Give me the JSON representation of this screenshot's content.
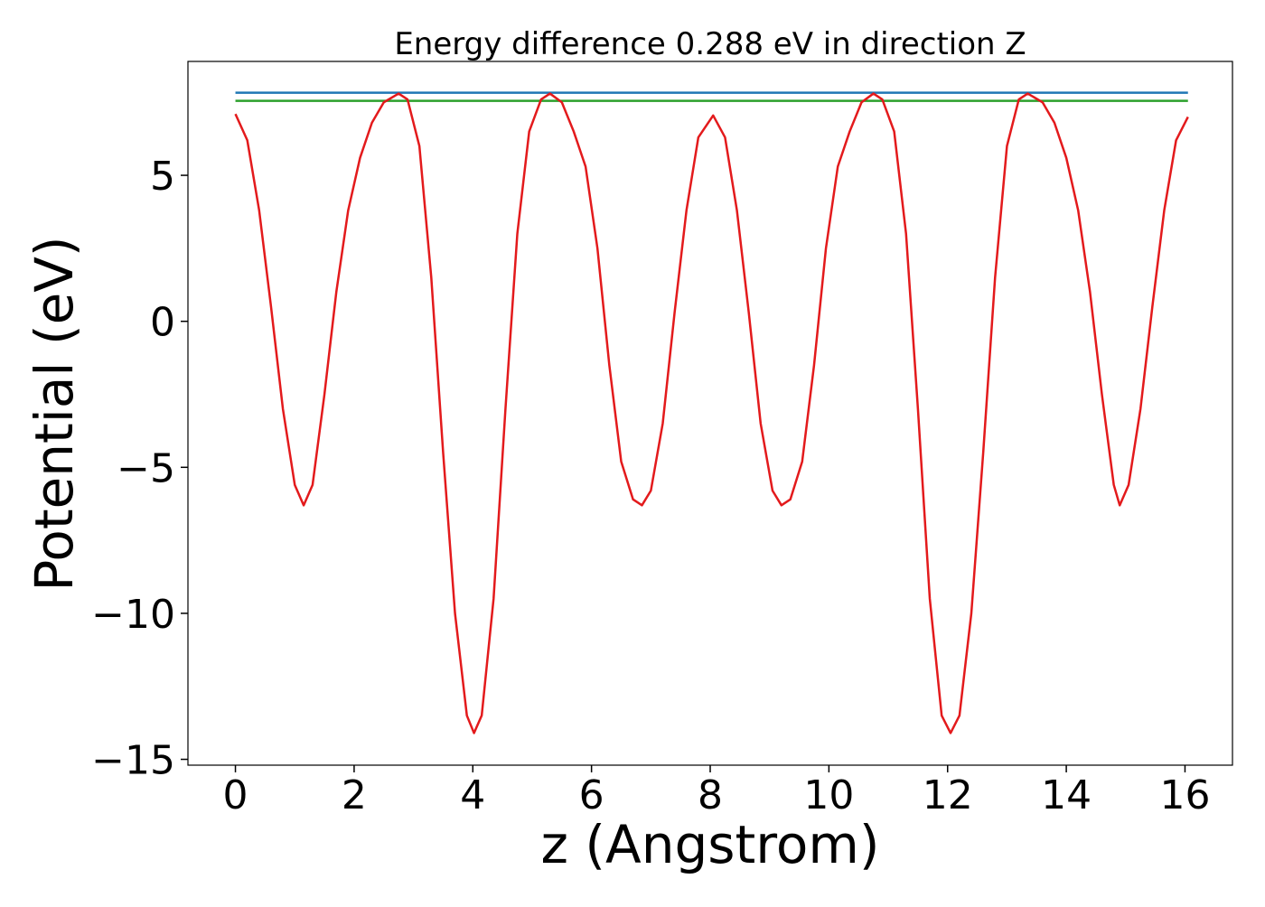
{
  "chart_data": {
    "type": "line",
    "title": "Energy difference 0.288 eV in direction Z",
    "xlabel": "z (Angstrom)",
    "ylabel": "Potential (eV)",
    "xlim": [
      -0.8,
      16.8
    ],
    "ylim": [
      -15.2,
      8.9
    ],
    "xticks": [
      0,
      2,
      4,
      6,
      8,
      10,
      12,
      14,
      16
    ],
    "yticks": [
      {
        "value": -15,
        "label": "−15"
      },
      {
        "value": -10,
        "label": "−10"
      },
      {
        "value": -5,
        "label": "−5"
      },
      0,
      5
    ],
    "series": [
      {
        "color": "#e31a1c",
        "x": [
          0,
          0.2,
          0.4,
          0.6,
          0.8,
          1.0,
          1.15,
          1.3,
          1.5,
          1.7,
          1.9,
          2.1,
          2.3,
          2.5,
          2.75,
          2.9,
          3.1,
          3.3,
          3.5,
          3.7,
          3.9,
          4.02,
          4.15,
          4.35,
          4.55,
          4.75,
          4.95,
          5.15,
          5.3,
          5.5,
          5.7,
          5.9,
          6.1,
          6.3,
          6.5,
          6.7,
          6.85,
          7.0,
          7.2,
          7.4,
          7.6,
          7.8,
          8.05,
          8.25,
          8.45,
          8.65,
          8.85,
          9.05,
          9.2,
          9.35,
          9.55,
          9.75,
          9.95,
          10.15,
          10.35,
          10.55,
          10.75,
          10.9,
          11.1,
          11.3,
          11.5,
          11.7,
          11.9,
          12.05,
          12.2,
          12.4,
          12.6,
          12.8,
          13.0,
          13.2,
          13.35,
          13.6,
          13.8,
          14.0,
          14.2,
          14.4,
          14.6,
          14.8,
          14.9,
          15.05,
          15.25,
          15.45,
          15.65,
          15.85,
          16.05
        ],
        "values": [
          7.1,
          6.2,
          3.8,
          0.5,
          -3.0,
          -5.6,
          -6.3,
          -5.6,
          -2.5,
          1.0,
          3.8,
          5.6,
          6.8,
          7.5,
          7.8,
          7.6,
          6.0,
          1.5,
          -4.5,
          -10.0,
          -13.5,
          -14.1,
          -13.5,
          -9.5,
          -3.0,
          3.0,
          6.5,
          7.6,
          7.8,
          7.5,
          6.5,
          5.3,
          2.5,
          -1.5,
          -4.8,
          -6.1,
          -6.3,
          -5.8,
          -3.5,
          0.3,
          3.8,
          6.3,
          7.05,
          6.3,
          3.8,
          0.3,
          -3.5,
          -5.8,
          -6.3,
          -6.1,
          -4.8,
          -1.5,
          2.5,
          5.3,
          6.5,
          7.5,
          7.8,
          7.6,
          6.5,
          3.0,
          -3.0,
          -9.5,
          -13.5,
          -14.1,
          -13.5,
          -10.0,
          -4.5,
          1.5,
          6.0,
          7.6,
          7.8,
          7.5,
          6.8,
          5.6,
          3.8,
          1.0,
          -2.5,
          -5.6,
          -6.3,
          -5.6,
          -3.0,
          0.5,
          3.8,
          6.2,
          7.0
        ]
      },
      {
        "color": "#1f77b4",
        "x": [
          0,
          16.05
        ],
        "values": [
          7.83,
          7.83
        ]
      },
      {
        "color": "#2ca02c",
        "x": [
          0,
          16.05
        ],
        "values": [
          7.55,
          7.55
        ]
      }
    ]
  }
}
